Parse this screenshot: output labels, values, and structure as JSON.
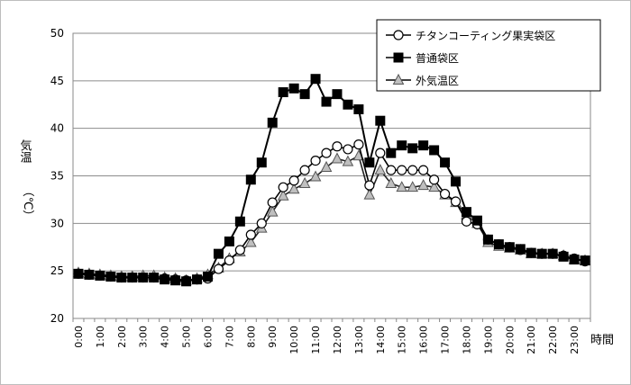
{
  "chart_data": {
    "type": "line",
    "ylabel": "気温\n（℃）",
    "xlabel": "時間",
    "ylim": [
      20,
      50
    ],
    "yticks": [
      20,
      25,
      30,
      35,
      40,
      45,
      50
    ],
    "x_tick_labels": [
      "0:00",
      "1:00",
      "2:00",
      "3:00",
      "4:00",
      "5:00",
      "6:00",
      "7:00",
      "8:00",
      "9:00",
      "10:00",
      "11:00",
      "12:00",
      "13:00",
      "14:00",
      "15:00",
      "16:00",
      "17:00",
      "18:00",
      "19:00",
      "20:00",
      "21:00",
      "22:00",
      "23:00"
    ],
    "points_per_hour": 2,
    "grid": true,
    "legend_position": "top-right",
    "series": [
      {
        "name": "チタンコーティング果実袋区",
        "marker": "circle",
        "values": [
          24.7,
          24.6,
          24.5,
          24.4,
          24.3,
          24.3,
          24.3,
          24.3,
          24.2,
          24.1,
          24.0,
          24.1,
          24.2,
          25.2,
          26.1,
          27.2,
          28.8,
          30.0,
          32.2,
          33.8,
          34.5,
          35.6,
          36.6,
          37.4,
          38.1,
          37.8,
          38.3,
          34.0,
          37.4,
          35.6,
          35.6,
          35.6,
          35.6,
          34.6,
          33.1,
          32.3,
          30.2,
          29.9,
          28.3,
          27.8,
          27.5,
          27.2,
          26.9,
          26.8,
          26.8,
          26.6,
          26.3,
          26.0
        ]
      },
      {
        "name": "普通袋区",
        "marker": "square",
        "values": [
          24.7,
          24.6,
          24.5,
          24.4,
          24.3,
          24.3,
          24.3,
          24.3,
          24.1,
          24.0,
          23.9,
          24.1,
          24.4,
          26.8,
          28.1,
          30.2,
          34.6,
          36.4,
          40.6,
          43.8,
          44.2,
          43.6,
          45.2,
          42.8,
          43.6,
          42.5,
          42.0,
          36.4,
          40.8,
          37.4,
          38.2,
          37.9,
          38.2,
          37.7,
          36.4,
          34.4,
          31.2,
          30.3,
          28.3,
          27.8,
          27.5,
          27.3,
          26.9,
          26.8,
          26.8,
          26.5,
          26.2,
          26.1
        ]
      },
      {
        "name": "外気温区",
        "marker": "triangle",
        "values": [
          24.8,
          24.7,
          24.6,
          24.5,
          24.4,
          24.4,
          24.5,
          24.5,
          24.3,
          24.2,
          24.0,
          24.2,
          24.6,
          25.3,
          26.3,
          27.0,
          28.0,
          29.5,
          31.2,
          32.9,
          33.6,
          34.2,
          34.9,
          35.9,
          36.8,
          36.5,
          37.1,
          33.0,
          35.6,
          34.2,
          33.8,
          33.8,
          34.0,
          33.8,
          33.0,
          32.2,
          30.9,
          30.0,
          28.0,
          27.6,
          27.4,
          27.2,
          26.8,
          26.8,
          26.8,
          26.6,
          26.2,
          26.1
        ]
      }
    ]
  }
}
